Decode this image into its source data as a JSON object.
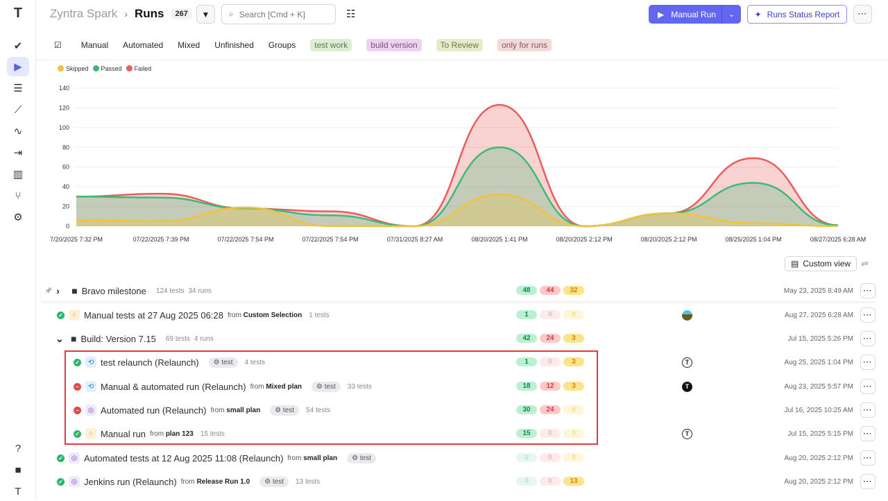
{
  "sidebar": {
    "items": [
      {
        "icon": "logo-icon",
        "glyph": "T"
      },
      {
        "icon": "check-icon",
        "glyph": "✔"
      },
      {
        "icon": "play-circle-icon",
        "glyph": "▶",
        "active": true
      },
      {
        "icon": "list-check-icon",
        "glyph": "☰"
      },
      {
        "icon": "steps-icon",
        "glyph": "⟋"
      },
      {
        "icon": "pulse-icon",
        "glyph": "∿"
      },
      {
        "icon": "import-icon",
        "glyph": "⇥"
      },
      {
        "icon": "bar-chart-icon",
        "glyph": "▥"
      },
      {
        "icon": "branch-icon",
        "glyph": "⑂"
      },
      {
        "icon": "gear-icon",
        "glyph": "⚙"
      },
      {
        "icon": "help-icon",
        "glyph": "?"
      },
      {
        "icon": "folder-icon",
        "glyph": "■"
      },
      {
        "icon": "user-avatar-icon",
        "glyph": "T"
      }
    ]
  },
  "header": {
    "project": "Zyntra Spark",
    "title": "Runs",
    "count": "267",
    "search_placeholder": "Search [Cmd + K]",
    "manual_run": "Manual Run",
    "report": "Runs Status Report"
  },
  "tabs": [
    "Manual",
    "Automated",
    "Mixed",
    "Unfinished",
    "Groups"
  ],
  "tags": [
    {
      "label": "test work",
      "bg": "#dcefd3",
      "fg": "#5c7a50"
    },
    {
      "label": "build version",
      "bg": "#ecd3f0",
      "fg": "#7f4a8a"
    },
    {
      "label": "To Review",
      "bg": "#e6eccb",
      "fg": "#6d7640"
    },
    {
      "label": "only for runs",
      "bg": "#f3d9d9",
      "fg": "#8a5656"
    }
  ],
  "chart_data": {
    "type": "area",
    "categories": [
      "7/20/2025 7:32 PM",
      "07/22/2025 7:39 PM",
      "07/22/2025 7:54 PM",
      "07/22/2025 7:54 PM",
      "07/31/2025 8:27 AM",
      "08/20/2025 1:41 PM",
      "08/20/2025 2:12 PM",
      "08/20/2025 2:12 PM",
      "08/25/2025 1:04 PM",
      "08/27/2025 6:28 AM"
    ],
    "ylim": [
      0,
      140
    ],
    "yticks": [
      0,
      20,
      40,
      60,
      80,
      100,
      120,
      140
    ],
    "grid": true,
    "legend": "top-left",
    "series": [
      {
        "name": "Failed",
        "color": "#e85d5d",
        "values": [
          30,
          33,
          18,
          15,
          0,
          123,
          0,
          13,
          69,
          1
        ]
      },
      {
        "name": "Passed",
        "color": "#3dbb76",
        "values": [
          30,
          29,
          18,
          11,
          0,
          80,
          0,
          13,
          44,
          1
        ]
      },
      {
        "name": "Skipped",
        "color": "#f0c43a",
        "values": [
          6,
          5,
          19,
          0,
          0,
          32,
          0,
          13,
          3,
          0
        ]
      }
    ]
  },
  "custom_view": "Custom view",
  "rows": [
    {
      "kind": "group",
      "expanded": false,
      "title": "Bravo milestone",
      "tests": "124 tests",
      "runs": "34 runs",
      "passed": "48",
      "failed": "44",
      "skipped": "32",
      "date": "May 23, 2025 8:49 AM"
    },
    {
      "kind": "run",
      "status": "passed",
      "type": "manual",
      "title": "Manual tests at 27 Aug 2025 06:28",
      "from": "from",
      "source": "Custom Selection",
      "tests": "1 tests",
      "passed": "1",
      "failed": "0",
      "skipped": "0",
      "avatar": "photo",
      "date": "Aug 27, 2025 6:28 AM"
    },
    {
      "kind": "group",
      "expanded": true,
      "title": "Build: Version 7.15",
      "tests": "69 tests",
      "runs": "4 runs",
      "passed": "42",
      "failed": "24",
      "skipped": "3",
      "date": "Jul 15, 2025 5:26 PM"
    },
    {
      "kind": "run",
      "nested": true,
      "status": "passed",
      "type": "mixed",
      "title": "test relaunch (Relaunch)",
      "tag": "test",
      "tests": "4 tests",
      "passed": "1",
      "failed": "0",
      "skipped": "3",
      "avatar": "outline",
      "date": "Aug 25, 2025 1:04 PM"
    },
    {
      "kind": "run",
      "nested": true,
      "status": "failed",
      "type": "mixed",
      "title": "Manual & automated run (Relaunch)",
      "from": "from",
      "source": "Mixed plan",
      "tag": "test",
      "tests": "33 tests",
      "passed": "18",
      "failed": "12",
      "skipped": "3",
      "avatar": "solid",
      "date": "Aug 23, 2025 5:57 PM"
    },
    {
      "kind": "run",
      "nested": true,
      "status": "failed",
      "type": "automated",
      "title": "Automated run (Relaunch)",
      "from": "from",
      "source": "small plan",
      "tag": "test",
      "tests": "54 tests",
      "passed": "30",
      "failed": "24",
      "skipped": "0",
      "date": "Jul 16, 2025 10:25 AM"
    },
    {
      "kind": "run",
      "nested": true,
      "status": "passed",
      "type": "manual",
      "title": "Manual run",
      "from": "from",
      "source": "plan 123",
      "tests": "15 tests",
      "passed": "15",
      "failed": "0",
      "skipped": "0",
      "avatar": "outline",
      "date": "Jul 15, 2025 5:15 PM"
    },
    {
      "kind": "run",
      "status": "passed",
      "type": "automated",
      "title": "Automated tests at 12 Aug 2025 11:08 (Relaunch)",
      "from": "from",
      "source": "small plan",
      "tag": "test",
      "passed": "0",
      "failed": "0",
      "skipped": "0",
      "date": "Aug 20, 2025 2:12 PM"
    },
    {
      "kind": "run",
      "status": "passed",
      "type": "automated",
      "title": "Jenkins run (Relaunch)",
      "from": "from",
      "source": "Release Run 1.0",
      "tag": "test",
      "tests": "13 tests",
      "passed": "0",
      "failed": "0",
      "skipped": "13",
      "date": "Aug 20, 2025 2:12 PM"
    }
  ]
}
